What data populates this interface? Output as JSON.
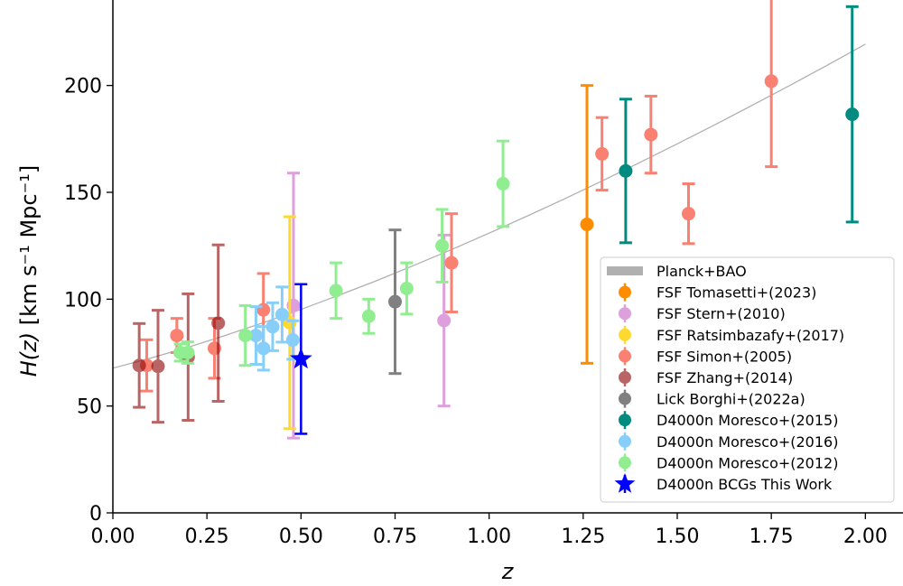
{
  "chart_data": {
    "type": "scatter",
    "title": "",
    "xlabel": "z",
    "ylabel": "H(z) [km s⁻¹ Mpc⁻¹]",
    "xlim": [
      0,
      2.1
    ],
    "ylim": [
      0,
      240
    ],
    "xticks": [
      "0.00",
      "0.25",
      "0.50",
      "0.75",
      "1.00",
      "1.25",
      "1.50",
      "1.75",
      "2.00"
    ],
    "yticks": [
      "0",
      "50",
      "100",
      "150",
      "200"
    ],
    "grid": false,
    "legend_placement": "lower-right",
    "model_curve": {
      "name": "Planck+BAO",
      "color": "#b0b0b0",
      "x": [
        0,
        0.1,
        0.2,
        0.3,
        0.4,
        0.5,
        0.6,
        0.7,
        0.8,
        0.9,
        1.0,
        1.1,
        1.2,
        1.3,
        1.4,
        1.5,
        1.6,
        1.7,
        1.8,
        1.9,
        2.0
      ],
      "y": [
        67.7,
        72.4,
        77.5,
        83.1,
        89.0,
        95.2,
        101.8,
        108.6,
        115.8,
        123.2,
        130.9,
        138.8,
        146.9,
        155.3,
        163.9,
        172.7,
        181.6,
        190.8,
        200.1,
        209.6,
        219.3
      ]
    },
    "series": [
      {
        "name": "FSF Tomasetti+(2023)",
        "color": "#ff8c00",
        "marker": "circle",
        "alpha": 1,
        "points": [
          [
            1.26,
            135,
            65
          ]
        ]
      },
      {
        "name": "FSF Stern+(2010)",
        "color": "#dda0dd",
        "marker": "circle",
        "alpha": 1,
        "points": [
          [
            0.48,
            97,
            62
          ],
          [
            0.88,
            90,
            40
          ]
        ]
      },
      {
        "name": "FSF Ratsimbazafy+(2017)",
        "color": "#ffd92f",
        "marker": "circle",
        "alpha": 1,
        "points": [
          [
            0.47,
            89,
            49.6
          ]
        ]
      },
      {
        "name": "FSF Simon+(2005)",
        "color": "#fa8072",
        "marker": "circle",
        "alpha": 1,
        "points": [
          [
            0.09,
            69,
            12
          ],
          [
            0.17,
            83,
            8
          ],
          [
            0.27,
            77,
            14
          ],
          [
            0.4,
            95,
            17
          ],
          [
            0.9,
            117,
            23
          ],
          [
            1.3,
            168,
            17
          ],
          [
            1.43,
            177,
            18
          ],
          [
            1.53,
            140,
            14
          ],
          [
            1.75,
            202,
            40
          ]
        ]
      },
      {
        "name": "FSF Zhang+(2014)",
        "color": "#8b0000",
        "marker": "circle",
        "alpha": 0.6,
        "points": [
          [
            0.07,
            69,
            19.6
          ],
          [
            0.12,
            68.6,
            26.2
          ],
          [
            0.2,
            72.9,
            29.6
          ],
          [
            0.28,
            88.8,
            36.6
          ]
        ]
      },
      {
        "name": "Lick Borghi+(2022a)",
        "color": "#808080",
        "marker": "circle",
        "alpha": 1,
        "points": [
          [
            0.75,
            98.8,
            33.6
          ]
        ]
      },
      {
        "name": "D4000n Moresco+(2015)",
        "color": "#008b80",
        "marker": "circle",
        "alpha": 1,
        "points": [
          [
            1.363,
            160,
            33.6
          ],
          [
            1.965,
            186.5,
            50.4
          ]
        ]
      },
      {
        "name": "D4000n Moresco+(2016)",
        "color": "#87cefa",
        "marker": "circle",
        "alpha": 1,
        "points": [
          [
            0.3802,
            83,
            13.5
          ],
          [
            0.4004,
            77,
            10.2
          ],
          [
            0.4247,
            87.1,
            11.2
          ],
          [
            0.4497,
            92.8,
            12.9
          ],
          [
            0.4783,
            80.9,
            9
          ]
        ]
      },
      {
        "name": "D4000n Moresco+(2012)",
        "color": "#90ee90",
        "marker": "circle",
        "alpha": 1,
        "points": [
          [
            0.179,
            75,
            4
          ],
          [
            0.199,
            75,
            5
          ],
          [
            0.352,
            83,
            14
          ],
          [
            0.593,
            104,
            13
          ],
          [
            0.68,
            92,
            8
          ],
          [
            0.781,
            105,
            12
          ],
          [
            0.875,
            125,
            17
          ],
          [
            1.037,
            154,
            20
          ]
        ]
      },
      {
        "name": "D4000n BCGs This Work",
        "color": "#0000ff",
        "marker": "star",
        "alpha": 1,
        "points": [
          [
            0.5,
            72,
            35
          ]
        ]
      }
    ]
  }
}
